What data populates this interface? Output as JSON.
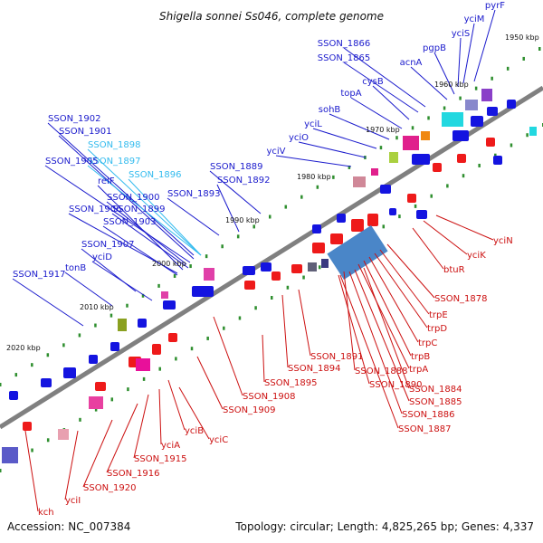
{
  "title": "Shigella sonnei Ss046, complete genome",
  "footer": {
    "accession": "Accession: NC_007384",
    "summary": "Topology: circular; Length: 4,825,265 bp; Genes: 4,337"
  },
  "colors": {
    "forward_label": "#1a1acc",
    "reverse_label": "#cc1010",
    "highlight_label": "#33bbee",
    "backbone": "#808080",
    "tick": "#2f8f2f"
  },
  "kbp_marks": [
    "1950 kbp",
    "1960 kbp",
    "1970 kbp",
    "1980 kbp",
    "1990 kbp",
    "2000 kbp",
    "2010 kbp",
    "2020 kbp"
  ],
  "forward_labels": [
    "pyrF",
    "yciM",
    "yciS",
    "pgpB",
    "acnA",
    "SSON_1866",
    "SSON_1865",
    "cysB",
    "topA",
    "sohB",
    "yciL",
    "yciO",
    "yciV",
    "SSON_1902",
    "SSON_1901",
    "SSON_1898",
    "SSON_1897",
    "SSON_1905",
    "SSON_1896",
    "relF",
    "SSON_1889",
    "SSON_1892",
    "SSON_1893",
    "SSON_1900",
    "SSON_1906",
    "SSON_1899",
    "SSON_1903",
    "SSON_1907",
    "yciD",
    "tonB",
    "SSON_1917"
  ],
  "reverse_labels": [
    "yciN",
    "yciK",
    "btuR",
    "SSON_1878",
    "trpE",
    "trpD",
    "trpC",
    "trpB",
    "trpA",
    "SSON_1891",
    "SSON_1894",
    "SSON_1888",
    "SSON_1890",
    "SSON_1884",
    "SSON_1885",
    "SSON_1886",
    "SSON_1887",
    "SSON_1895",
    "SSON_1908",
    "SSON_1909",
    "yciC",
    "yciB",
    "yciA",
    "SSON_1915",
    "SSON_1916",
    "SSON_1920",
    "yciI",
    "kch"
  ]
}
